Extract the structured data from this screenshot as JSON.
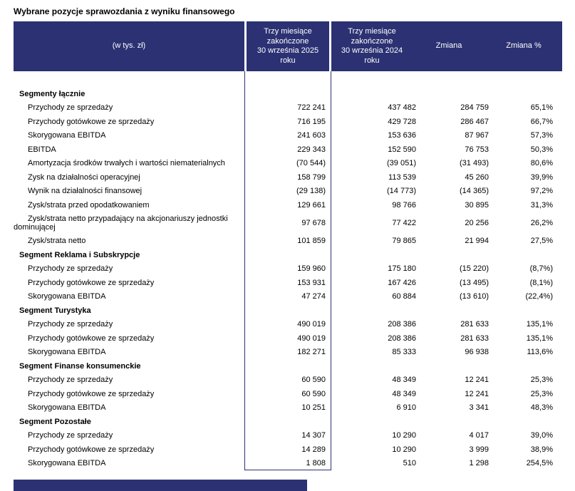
{
  "title": "Wybrane pozycje sprawozdania z wyniku finansowego",
  "colors": {
    "header_background": "#2b3172",
    "header_text": "#ffffff",
    "body_text": "#000000",
    "highlight_box_border": "#2b3172"
  },
  "table": {
    "columns": [
      "(w tys. zł)",
      "Trzy miesiące\nzakończone\n30 września 2025\nroku",
      "Trzy miesiące\nzakończone\n30 września 2024\nroku",
      "Zmiana",
      "Zmiana %"
    ],
    "rows": [
      {
        "type": "section",
        "label": "Segmenty łącznie"
      },
      {
        "type": "item",
        "label": "Przychody ze sprzedaży",
        "v2025": "722 241",
        "v2024": "437 482",
        "change": "284 759",
        "pct": "65,1%"
      },
      {
        "type": "item",
        "label": "Przychody gotówkowe ze sprzedaży",
        "v2025": "716 195",
        "v2024": "429 728",
        "change": "286 467",
        "pct": "66,7%"
      },
      {
        "type": "item",
        "label": "Skorygowana EBITDA",
        "v2025": "241 603",
        "v2024": "153 636",
        "change": "87 967",
        "pct": "57,3%"
      },
      {
        "type": "item",
        "label": "EBITDA",
        "v2025": "229 343",
        "v2024": "152 590",
        "change": "76 753",
        "pct": "50,3%"
      },
      {
        "type": "item",
        "label": "Amortyzacja środków trwałych i wartości niematerialnych",
        "v2025": "(70 544)",
        "v2024": "(39 051)",
        "change": "(31 493)",
        "pct": "80,6%"
      },
      {
        "type": "item",
        "label": "Zysk na działalności operacyjnej",
        "v2025": "158 799",
        "v2024": "113 539",
        "change": "45 260",
        "pct": "39,9%"
      },
      {
        "type": "item",
        "label": "Wynik na działalności finansowej",
        "v2025": "(29 138)",
        "v2024": "(14 773)",
        "change": "(14 365)",
        "pct": "97,2%"
      },
      {
        "type": "item",
        "label": "Zysk/strata przed opodatkowaniem",
        "v2025": "129 661",
        "v2024": "98 766",
        "change": "30 895",
        "pct": "31,3%"
      },
      {
        "type": "item",
        "label": "Zysk/strata netto przypadający na akcjonariuszy jednostki dominującej",
        "v2025": "97 678",
        "v2024": "77 422",
        "change": "20 256",
        "pct": "26,2%"
      },
      {
        "type": "item",
        "label": "Zysk/strata netto",
        "v2025": "101 859",
        "v2024": "79 865",
        "change": "21 994",
        "pct": "27,5%"
      },
      {
        "type": "section",
        "label": "Segment Reklama i Subskrypcje"
      },
      {
        "type": "item",
        "label": "Przychody ze sprzedaży",
        "v2025": "159 960",
        "v2024": "175 180",
        "change": "(15 220)",
        "pct": "(8,7%)"
      },
      {
        "type": "item",
        "label": "Przychody gotówkowe ze sprzedaży",
        "v2025": "153 931",
        "v2024": "167 426",
        "change": "(13 495)",
        "pct": "(8,1%)"
      },
      {
        "type": "item",
        "label": "Skorygowana EBITDA",
        "v2025": "47 274",
        "v2024": "60 884",
        "change": "(13 610)",
        "pct": "(22,4%)"
      },
      {
        "type": "section",
        "label": "Segment Turystyka"
      },
      {
        "type": "item",
        "label": "Przychody ze sprzedaży",
        "v2025": "490 019",
        "v2024": "208 386",
        "change": "281 633",
        "pct": "135,1%"
      },
      {
        "type": "item",
        "label": "Przychody gotówkowe ze sprzedaży",
        "v2025": "490 019",
        "v2024": "208 386",
        "change": "281 633",
        "pct": "135,1%"
      },
      {
        "type": "item",
        "label": "Skorygowana EBITDA",
        "v2025": "182 271",
        "v2024": "85 333",
        "change": "96 938",
        "pct": "113,6%"
      },
      {
        "type": "section",
        "label": "Segment Finanse konsumenckie"
      },
      {
        "type": "item",
        "label": "Przychody ze sprzedaży",
        "v2025": "60 590",
        "v2024": "48 349",
        "change": "12 241",
        "pct": "25,3%"
      },
      {
        "type": "item",
        "label": "Przychody gotówkowe ze sprzedaży",
        "v2025": "60 590",
        "v2024": "48 349",
        "change": "12 241",
        "pct": "25,3%"
      },
      {
        "type": "item",
        "label": "Skorygowana EBITDA",
        "v2025": "10 251",
        "v2024": "6 910",
        "change": "3 341",
        "pct": "48,3%"
      },
      {
        "type": "section",
        "label": "Segment Pozostałe"
      },
      {
        "type": "item",
        "label": "Przychody ze sprzedaży",
        "v2025": "14 307",
        "v2024": "10 290",
        "change": "4 017",
        "pct": "39,0%"
      },
      {
        "type": "item",
        "label": "Przychody gotówkowe ze sprzedaży",
        "v2025": "14 289",
        "v2024": "10 290",
        "change": "3 999",
        "pct": "38,9%"
      },
      {
        "type": "item",
        "label": "Skorygowana EBITDA",
        "v2025": "1 808",
        "v2024": "510",
        "change": "1 298",
        "pct": "254,5%"
      }
    ]
  }
}
